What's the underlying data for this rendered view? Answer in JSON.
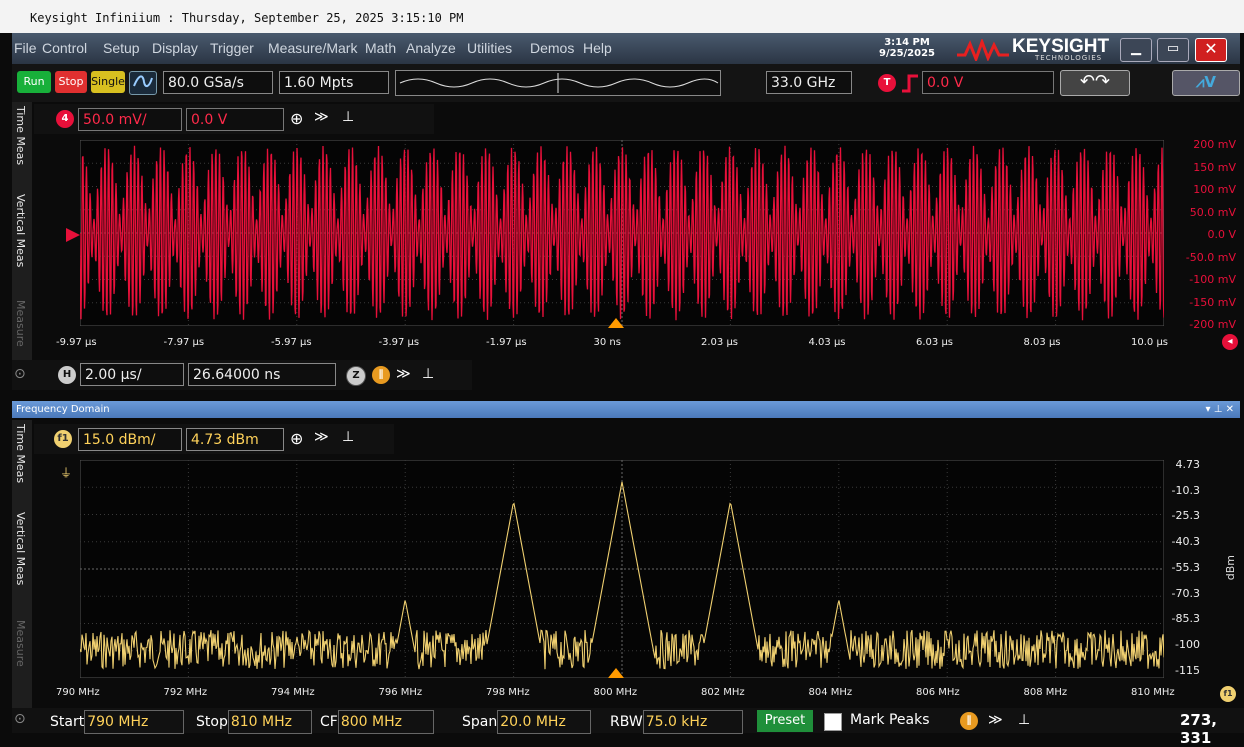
{
  "window_title": "Keysight Infiniium : Thursday, September 25, 2025 3:15:10 PM",
  "menu": [
    "File",
    "Control",
    "Setup",
    "Display",
    "Trigger",
    "Measure/Mark",
    "Math",
    "Analyze",
    "Utilities",
    "Demos",
    "Help"
  ],
  "datetime": {
    "time": "3:14 PM",
    "date": "9/25/2025"
  },
  "brand": {
    "name": "KEYSIGHT",
    "sub": "TECHNOLOGIES"
  },
  "toolbar": {
    "run": "Run",
    "stop": "Stop",
    "single": "Single",
    "sample_rate": "80.0 GSa/s",
    "memory": "1.60 Mpts",
    "bandwidth": "33.0 GHz",
    "trigger_badge": "T",
    "trigger_level": "0.0 V"
  },
  "time_panel": {
    "channel": "4",
    "scale": "50.0 mV/",
    "offset": "0.0 V",
    "y_labels": [
      "200 mV",
      "150 mV",
      "100 mV",
      "50.0 mV",
      "0.0 V",
      "-50.0 mV",
      "-100 mV",
      "-150 mV",
      "-200 mV"
    ],
    "x_labels": [
      "-9.97 µs",
      "-7.97 µs",
      "-5.97 µs",
      "-3.97 µs",
      "-1.97 µs",
      "30 ns",
      "2.03 µs",
      "4.03 µs",
      "6.03 µs",
      "8.03 µs",
      "10.0 µs"
    ],
    "horizontal_badge": "H",
    "horizontal_scale": "2.00 µs/",
    "horizontal_position": "26.64000 ns",
    "zoom_badge": "Z"
  },
  "side_tabs": {
    "time_meas": "Time Meas",
    "vertical_meas": "Vertical Meas",
    "measure": "Measure"
  },
  "freq_panel": {
    "title": "Frequency Domain",
    "func": "f1",
    "scale": "15.0 dBm/",
    "offset": "4.73 dBm",
    "y_labels": [
      "4.73",
      "-10.3",
      "-25.3",
      "-40.3",
      "-55.3",
      "-70.3",
      "-85.3",
      "-100",
      "-115"
    ],
    "y_unit": "dBm",
    "x_labels": [
      "790 MHz",
      "792 MHz",
      "794 MHz",
      "796 MHz",
      "798 MHz",
      "800 MHz",
      "802 MHz",
      "804 MHz",
      "806 MHz",
      "808 MHz",
      "810 MHz"
    ]
  },
  "bottom": {
    "start_label": "Start",
    "start": "790 MHz",
    "stop_label": "Stop",
    "stop": "810 MHz",
    "cf_label": "CF",
    "cf": "800 MHz",
    "span_label": "Span",
    "span": "20.0 MHz",
    "rbw_label": "RBW",
    "rbw": "75.0 kHz",
    "preset": "Preset",
    "mark_peaks": "Mark Peaks",
    "cursor": "273, 331"
  },
  "colors": {
    "ch4": "#e8103a",
    "f1": "#f0d070",
    "accent": "#1f8f3a"
  }
}
